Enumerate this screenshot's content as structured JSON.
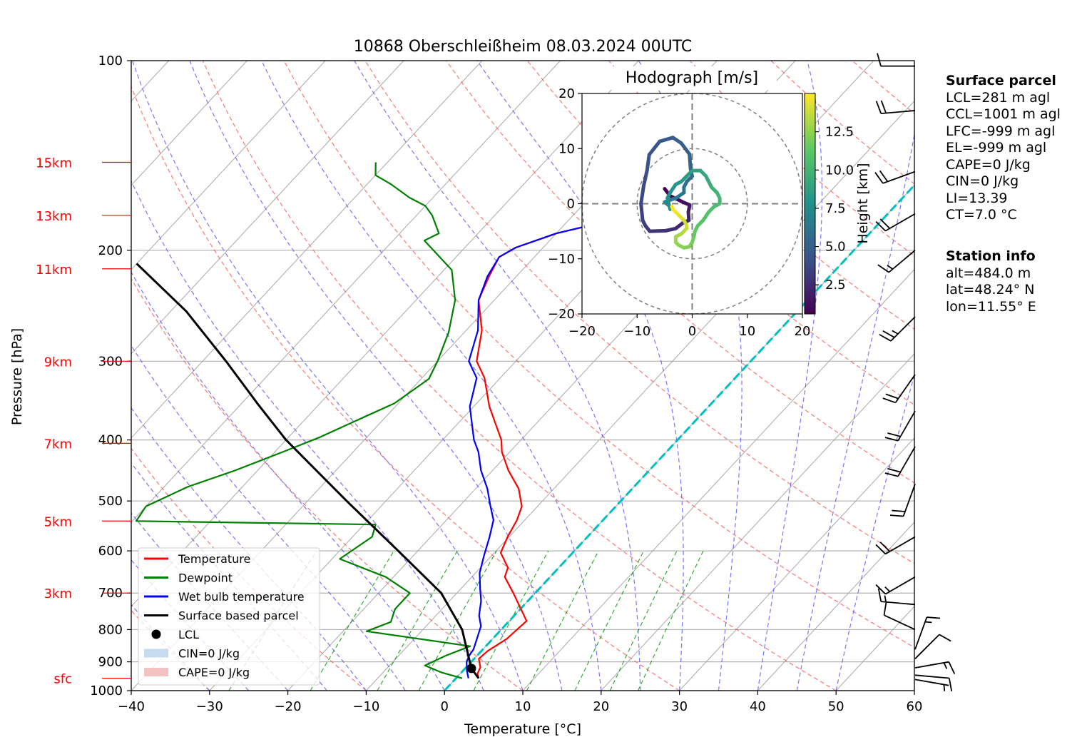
{
  "chart_data": {
    "type": "skew-t",
    "title": "10868 Oberschleißheim 08.03.2024 00UTC",
    "xlabel": "Temperature [°C]",
    "ylabel": "Pressure [hPa]",
    "xlim": [
      -40,
      60
    ],
    "ylim": [
      1000,
      100
    ],
    "xticks": [
      "−40",
      "−30",
      "−20",
      "−10",
      "0",
      "10",
      "20",
      "30",
      "40",
      "50",
      "60"
    ],
    "yticks": [
      "100",
      "200",
      "300",
      "400",
      "500",
      "600",
      "700",
      "800",
      "900",
      "1000"
    ],
    "height_labels": [
      {
        "label": "15km",
        "p": 145
      },
      {
        "label": "13km",
        "p": 176
      },
      {
        "label": "11km",
        "p": 214
      },
      {
        "label": "9km",
        "p": 300
      },
      {
        "label": "7km",
        "p": 405
      },
      {
        "label": "5km",
        "p": 538
      },
      {
        "label": "3km",
        "p": 700
      },
      {
        "label": "sfc",
        "p": 956
      }
    ],
    "series": [
      {
        "name": "Temperature",
        "color": "#ff0000",
        "points": [
          [
            2.9,
            956
          ],
          [
            2.2,
            940
          ],
          [
            1.8,
            918
          ],
          [
            0.6,
            890
          ],
          [
            0.8,
            865
          ],
          [
            1.8,
            828
          ],
          [
            2.2,
            775
          ],
          [
            -2.8,
            700
          ],
          [
            -5.8,
            660
          ],
          [
            -6.5,
            638
          ],
          [
            -9.2,
            604
          ],
          [
            -10.2,
            570
          ],
          [
            -11.0,
            536
          ],
          [
            -12.0,
            510
          ],
          [
            -14.5,
            478
          ],
          [
            -18.0,
            447
          ],
          [
            -21.0,
            418
          ],
          [
            -22.5,
            400
          ],
          [
            -28.0,
            354
          ],
          [
            -32.0,
            319
          ],
          [
            -35.0,
            300
          ],
          [
            -38.0,
            268
          ],
          [
            -42.0,
            240
          ],
          [
            -43.5,
            220
          ],
          [
            -44.5,
            205
          ],
          [
            -43.5,
            198
          ],
          [
            -40.0,
            188
          ],
          [
            -35.0,
            180
          ],
          [
            -33.0,
            176
          ],
          [
            -33.5,
            170
          ],
          [
            -29.0,
            163
          ],
          [
            -27.0,
            157
          ],
          [
            -26.5,
            152
          ],
          [
            -25.0,
            148
          ],
          [
            -24.0,
            145
          ]
        ]
      },
      {
        "name": "Dewpoint",
        "color": "#008000",
        "points": [
          [
            0.8,
            956
          ],
          [
            -2.5,
            936
          ],
          [
            -5.5,
            912
          ],
          [
            -4.0,
            880
          ],
          [
            -2.0,
            850
          ],
          [
            -17.0,
            805
          ],
          [
            -15.0,
            778
          ],
          [
            -16.0,
            742
          ],
          [
            -16.0,
            712
          ],
          [
            -16.0,
            700
          ],
          [
            -21.0,
            660
          ],
          [
            -29.0,
            618
          ],
          [
            -27.5,
            570
          ],
          [
            -28.5,
            545
          ],
          [
            -59.5,
            538
          ],
          [
            -60.0,
            510
          ],
          [
            -57.0,
            475
          ],
          [
            -53.0,
            448
          ],
          [
            -49.0,
            418
          ],
          [
            -46.0,
            396
          ],
          [
            -43.0,
            370
          ],
          [
            -40.5,
            350
          ],
          [
            -39.0,
            320
          ],
          [
            -40.0,
            300
          ],
          [
            -42.0,
            270
          ],
          [
            -45.0,
            240
          ],
          [
            -49.0,
            215
          ],
          [
            -56.0,
            193
          ],
          [
            -55.0,
            188
          ],
          [
            -58.0,
            176
          ],
          [
            -60.0,
            170
          ],
          [
            -63.0,
            165
          ],
          [
            -67.0,
            157
          ],
          [
            -70.0,
            152
          ],
          [
            -71.5,
            145
          ]
        ]
      },
      {
        "name": "Wet bulb temperature",
        "color": "#0000ff",
        "points": [
          [
            1.6,
            956
          ],
          [
            0.5,
            930
          ],
          [
            -0.6,
            900
          ],
          [
            -1.0,
            880
          ],
          [
            -1.2,
            860
          ],
          [
            -2.0,
            828
          ],
          [
            -3.0,
            790
          ],
          [
            -4.5,
            760
          ],
          [
            -6.0,
            720
          ],
          [
            -7.5,
            690
          ],
          [
            -9.5,
            650
          ],
          [
            -11.0,
            610
          ],
          [
            -12.5,
            570
          ],
          [
            -14.0,
            536
          ],
          [
            -16.0,
            510
          ],
          [
            -18.5,
            478
          ],
          [
            -21.5,
            447
          ],
          [
            -24.0,
            418
          ],
          [
            -26.0,
            400
          ],
          [
            -30.5,
            354
          ],
          [
            -33.0,
            319
          ],
          [
            -36.0,
            300
          ],
          [
            -38.5,
            268
          ],
          [
            -42.0,
            240
          ],
          [
            -43.7,
            220
          ],
          [
            -44.5,
            205
          ],
          [
            -43.5,
            198
          ],
          [
            -40.0,
            188
          ],
          [
            -35.0,
            180
          ],
          [
            -33.0,
            176
          ],
          [
            -33.5,
            170
          ],
          [
            -29.0,
            163
          ],
          [
            -27.0,
            157
          ],
          [
            -26.5,
            152
          ],
          [
            -25.0,
            148
          ],
          [
            -24.0,
            145
          ]
        ]
      },
      {
        "name": "Surface based parcel",
        "color": "#000000",
        "points": [
          [
            2.9,
            956
          ],
          [
            0.8,
            922
          ],
          [
            -5.0,
            800
          ],
          [
            -12.0,
            700
          ],
          [
            -22.5,
            600
          ],
          [
            -35.0,
            500
          ],
          [
            -50.0,
            400
          ],
          [
            -58.0,
            350
          ],
          [
            -67.0,
            300
          ],
          [
            -78.0,
            250
          ],
          [
            -90.0,
            210
          ]
        ]
      }
    ],
    "lcl": {
      "t": 0.8,
      "p": 922,
      "label": "LCL"
    },
    "legend": [
      {
        "label": "Temperature",
        "kind": "line",
        "color": "#ff0000"
      },
      {
        "label": "Dewpoint",
        "kind": "line",
        "color": "#008000"
      },
      {
        "label": "Wet bulb temperature",
        "kind": "line",
        "color": "#0000ff"
      },
      {
        "label": "Surface based parcel",
        "kind": "line",
        "color": "#000000"
      },
      {
        "label": "LCL",
        "kind": "dot",
        "color": "#000000"
      },
      {
        "label": "CIN=0 J/kg",
        "kind": "patch",
        "color": "#c6dbef"
      },
      {
        "label": "CAPE=0 J/kg",
        "kind": "patch",
        "color": "#f4c2c2"
      }
    ],
    "legend_position": "lower-left",
    "isotherm_zero_color": "#00bfbf",
    "grid": true
  },
  "hodograph": {
    "title": "Hodograph [m/s]",
    "xlim": [
      -20,
      20
    ],
    "ylim": [
      -20,
      20
    ],
    "xticks": [
      "−20",
      "−10",
      "0",
      "10",
      "20"
    ],
    "yticks": [
      "−20",
      "−10",
      "0",
      "10",
      "20"
    ],
    "rings": [
      10,
      20
    ],
    "colorbar_label": "Height [km]",
    "colorbar_ticks": [
      "2.5",
      "5.0",
      "7.5",
      "10.0",
      "12.5"
    ],
    "points": [
      [
        -2.7,
        -5
      ],
      [
        -1.4,
        -4
      ],
      [
        -0.7,
        -2.5
      ],
      [
        -0.2,
        -1.5
      ],
      [
        0.2,
        -0.5
      ],
      [
        0.5,
        -0.5
      ],
      [
        1.5,
        -0.7
      ],
      [
        3.0,
        -0.6
      ],
      [
        3.5,
        -1.7
      ],
      [
        4.5,
        -3.0
      ],
      [
        4.9,
        -4.8
      ],
      [
        5.0,
        -7.7
      ],
      [
        4.0,
        -8.5
      ],
      [
        3.0,
        -9.0
      ],
      [
        0.0,
        -9.3
      ],
      [
        -3.3,
        -8.8
      ],
      [
        -6.0,
        -8.2
      ],
      [
        -8.9,
        -7.8
      ],
      [
        -11.3,
        -5.9
      ],
      [
        -12.0,
        -3.5
      ],
      [
        -11.0,
        -2.0
      ],
      [
        -9.0,
        -0.5
      ],
      [
        -6.3,
        -0.3
      ],
      [
        -5.0,
        0.0
      ],
      [
        -4.0,
        -1.0
      ],
      [
        -3.0,
        -1.5
      ],
      [
        -2.0,
        -1.5
      ],
      [
        -1.0,
        -3.0
      ],
      [
        -0.5,
        -4.5
      ],
      [
        -0.3,
        -5.0
      ],
      [
        0.5,
        -4.0
      ],
      [
        1.0,
        -4.0
      ],
      [
        -1.0,
        -4.5
      ],
      [
        -2.0,
        -4.0
      ],
      [
        -3.5,
        -3.0
      ],
      [
        -4.0,
        -2.0
      ],
      [
        -5.0,
        -1.0
      ],
      [
        -6.0,
        0.0
      ],
      [
        -6.0,
        1.5
      ],
      [
        -5.0,
        2.5
      ],
      [
        -4.0,
        3.0
      ],
      [
        -3.0,
        3.5
      ],
      [
        -2.0,
        4.5
      ],
      [
        -1.0,
        5.0
      ],
      [
        0.0,
        5.0
      ],
      [
        0.5,
        4.0
      ],
      [
        1.5,
        3.0
      ],
      [
        3.0,
        2.0
      ],
      [
        4.0,
        1.0
      ],
      [
        5.0,
        0.5
      ],
      [
        6.0,
        0.3
      ],
      [
        7.0,
        0.0
      ],
      [
        7.8,
        -0.5
      ],
      [
        8.0,
        -1.5
      ],
      [
        7.5,
        -2.5
      ],
      [
        7.0,
        -3.0
      ],
      [
        6.0,
        -3.0
      ],
      [
        5.5,
        -2.0
      ],
      [
        5.0,
        -1.5
      ],
      [
        4.5,
        -1.0
      ],
      [
        4.0,
        -1.0
      ],
      [
        3.0,
        -1.5
      ],
      [
        2.5,
        -2.0
      ],
      [
        2.0,
        -2.5
      ],
      [
        1.5,
        -3.0
      ],
      [
        1.0,
        -3.5
      ],
      [
        0.5,
        -3.7
      ]
    ]
  },
  "surface_parcel": {
    "title": "Surface parcel",
    "lines": [
      "LCL=281 m agl",
      "CCL=1001 m agl",
      "LFC=-999 m agl",
      "EL=-999 m agl",
      "CAPE=0 J/kg",
      "CIN=0 J/kg",
      "LI=13.39",
      "CT=7.0 °C"
    ]
  },
  "station_info": {
    "title": "Station info",
    "lines": [
      "alt=484.0 m",
      "lat=48.24° N",
      "lon=11.55° E"
    ]
  },
  "wind_barbs": [
    {
      "p": 960,
      "spd_kt": 5,
      "dir_deg": 100
    },
    {
      "p": 945,
      "spd_kt": 10,
      "dir_deg": 95
    },
    {
      "p": 920,
      "spd_kt": 15,
      "dir_deg": 80
    },
    {
      "p": 890,
      "spd_kt": 10,
      "dir_deg": 45
    },
    {
      "p": 860,
      "spd_kt": 15,
      "dir_deg": 20
    },
    {
      "p": 800,
      "spd_kt": 10,
      "dir_deg": 295
    },
    {
      "p": 730,
      "spd_kt": 15,
      "dir_deg": 275
    },
    {
      "p": 660,
      "spd_kt": 15,
      "dir_deg": 240
    },
    {
      "p": 570,
      "spd_kt": 20,
      "dir_deg": 240
    },
    {
      "p": 470,
      "spd_kt": 20,
      "dir_deg": 200
    },
    {
      "p": 410,
      "spd_kt": 20,
      "dir_deg": 210
    },
    {
      "p": 360,
      "spd_kt": 20,
      "dir_deg": 210
    },
    {
      "p": 315,
      "spd_kt": 20,
      "dir_deg": 215
    },
    {
      "p": 255,
      "spd_kt": 25,
      "dir_deg": 225
    },
    {
      "p": 200,
      "spd_kt": 15,
      "dir_deg": 230
    },
    {
      "p": 175,
      "spd_kt": 20,
      "dir_deg": 240
    },
    {
      "p": 150,
      "spd_kt": 20,
      "dir_deg": 250
    },
    {
      "p": 120,
      "spd_kt": 20,
      "dir_deg": 265
    },
    {
      "p": 102,
      "spd_kt": 10,
      "dir_deg": 270
    }
  ]
}
